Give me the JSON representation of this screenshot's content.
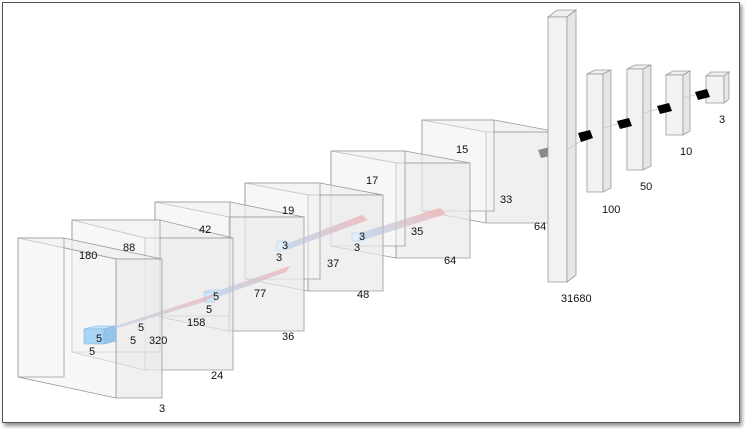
{
  "diagram": {
    "title": "",
    "conv_blocks": [
      {
        "id": "input",
        "labels": {
          "height": "180",
          "width": "320",
          "depth": "3"
        },
        "kernel": {
          "a": "5",
          "b": "5",
          "c": "5"
        }
      },
      {
        "id": "conv1",
        "labels": {
          "height": "88",
          "width": "158",
          "depth": "24"
        },
        "kernel": {
          "a": "5",
          "b": "5",
          "c": "5"
        }
      },
      {
        "id": "conv2",
        "labels": {
          "height": "42",
          "width": "77",
          "depth": "36"
        },
        "kernel": {
          "a": "3",
          "b": "3",
          "c": ""
        }
      },
      {
        "id": "conv3",
        "labels": {
          "height": "19",
          "width": "37",
          "depth": "48"
        },
        "kernel": {
          "a": "3",
          "b": "3",
          "c": ""
        }
      },
      {
        "id": "conv4",
        "labels": {
          "height": "17",
          "width": "35",
          "depth": "64"
        },
        "kernel": {
          "a": "",
          "b": "",
          "c": ""
        }
      },
      {
        "id": "conv5",
        "labels": {
          "height": "15",
          "width": "33",
          "depth": "64"
        },
        "kernel": {
          "a": "",
          "b": "",
          "c": ""
        }
      }
    ],
    "fc_layers": [
      {
        "id": "flatten",
        "label": "31680"
      },
      {
        "id": "fc1",
        "label": "100"
      },
      {
        "id": "fc2",
        "label": "50"
      },
      {
        "id": "fc3",
        "label": "10"
      },
      {
        "id": "output",
        "label": "3"
      }
    ],
    "colors": {
      "box_fill": "#eeeeee",
      "box_stroke": "#9a9a9a",
      "kernel_fill": "#a8d4f5",
      "arrow_red": "#f4a6a6",
      "arrow_blue": "#a9cdef",
      "connector": "#000000"
    }
  }
}
